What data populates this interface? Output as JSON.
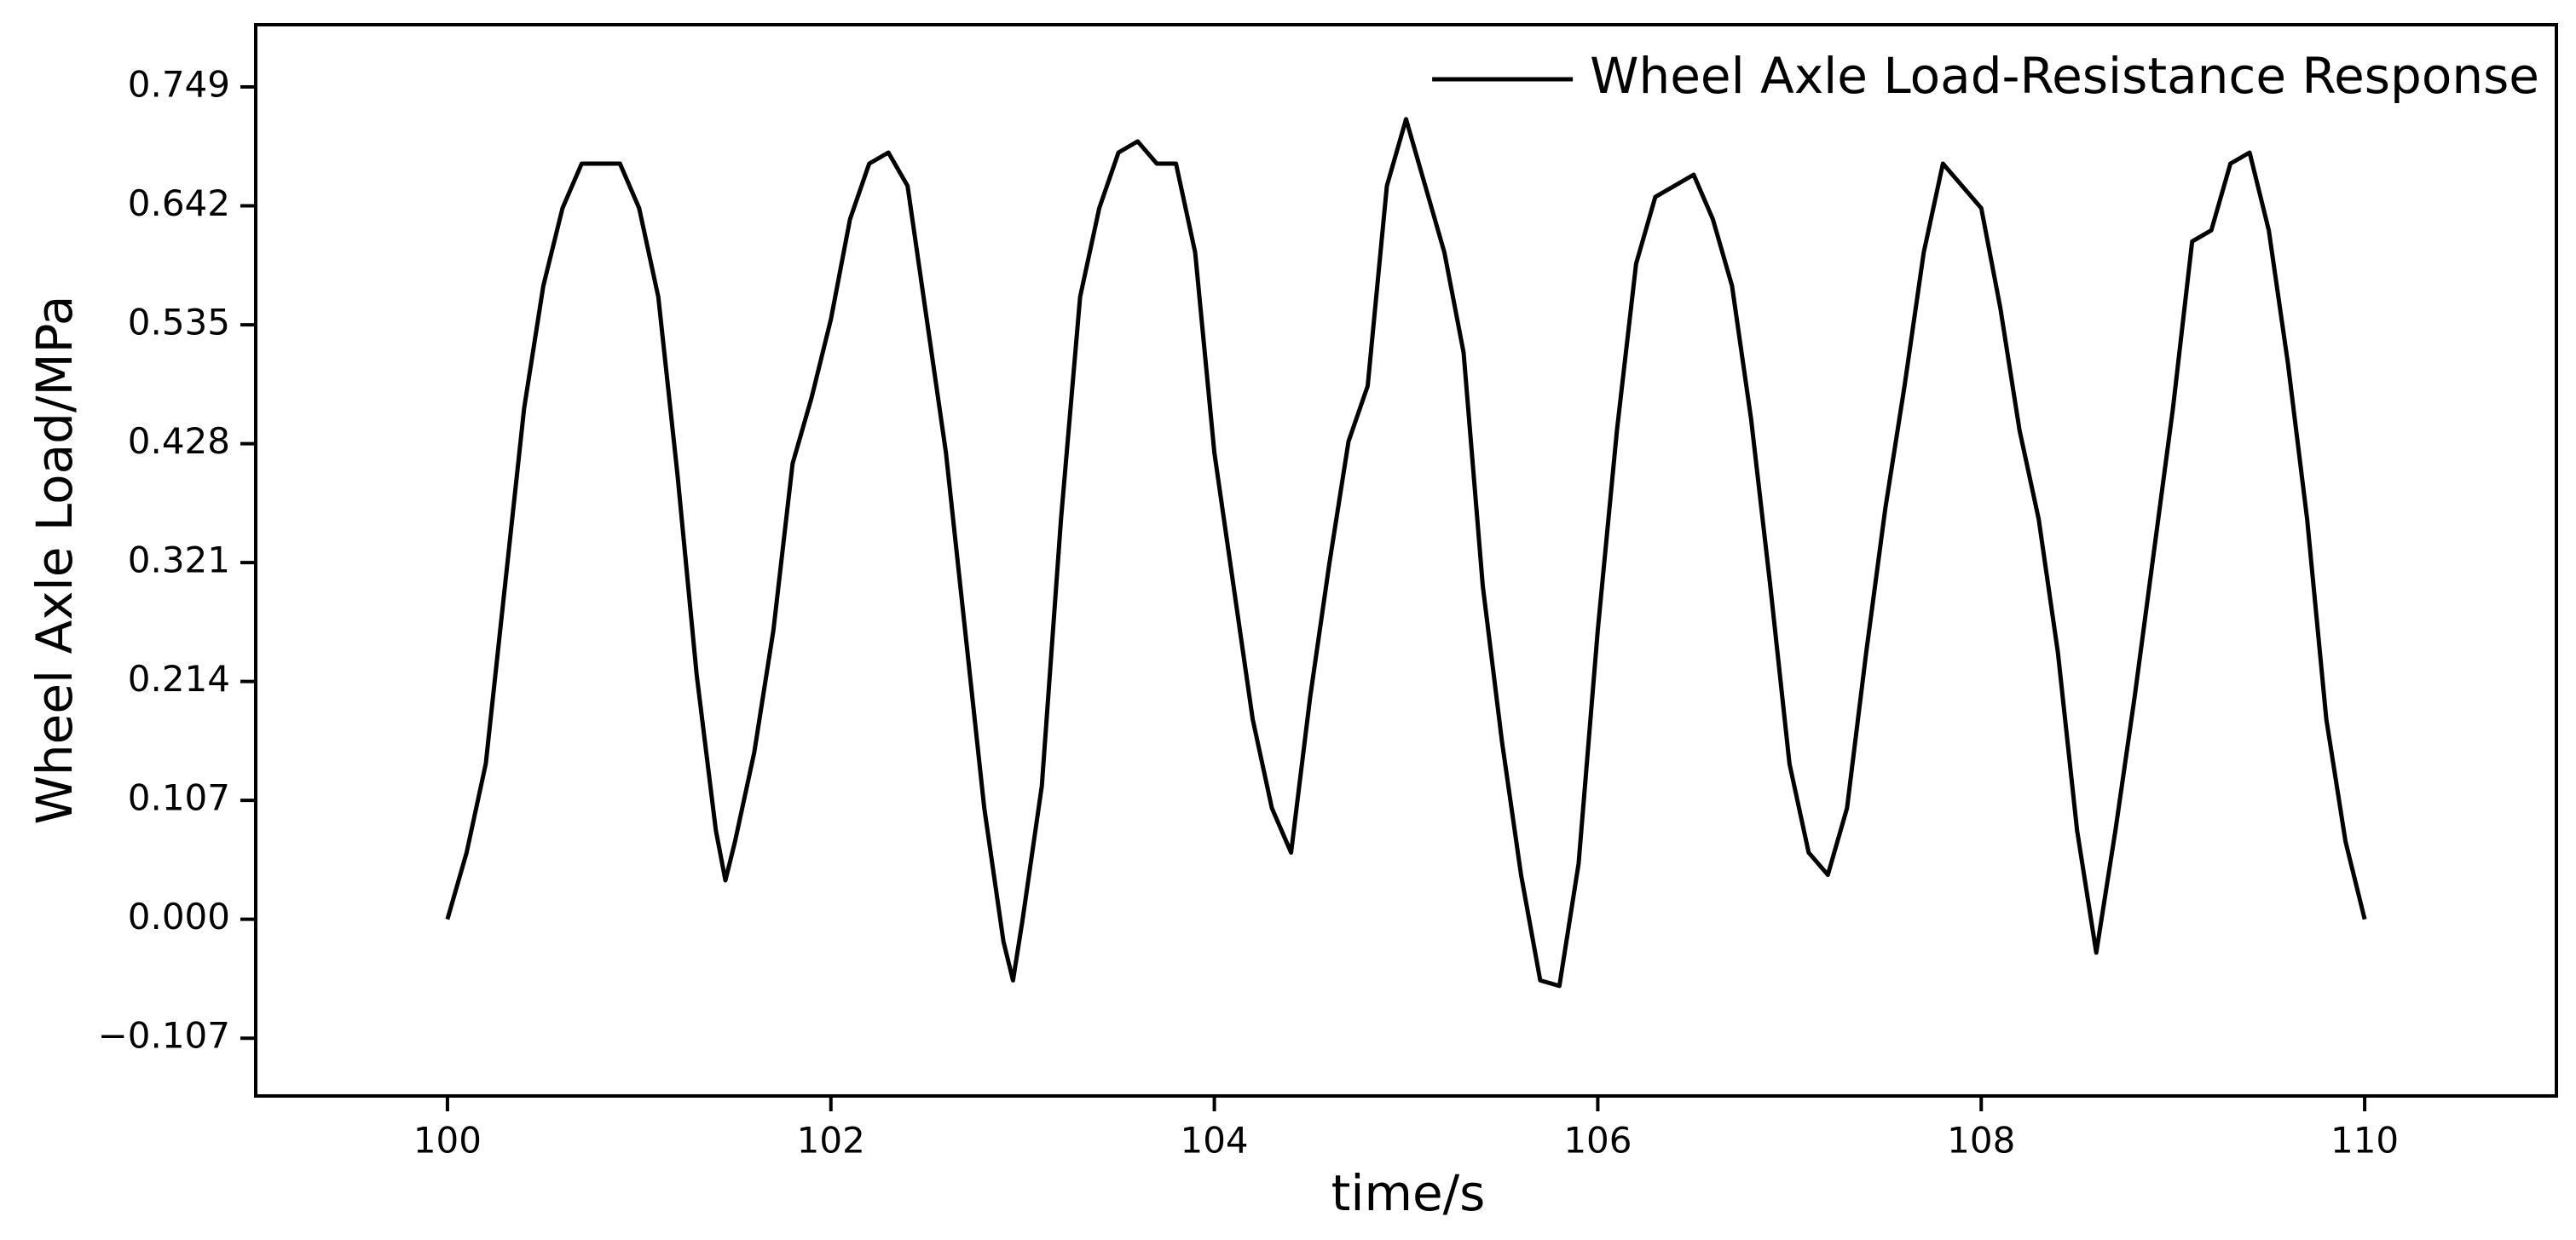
{
  "chart_data": {
    "type": "line",
    "xlabel": "time/s",
    "ylabel": "Wheel Axle Load/MPa",
    "xlim": [
      99,
      111
    ],
    "ylim": [
      -0.159,
      0.805
    ],
    "xticks": [
      100,
      102,
      104,
      106,
      108,
      110
    ],
    "yticks": [
      {
        "value": -0.107,
        "label": "−0.107"
      },
      {
        "value": 0,
        "label": "0.000"
      },
      0.107,
      0.214,
      0.321,
      0.428,
      0.535,
      0.642,
      0.749
    ],
    "legend": "upper right",
    "x": [
      100.0,
      100.1,
      100.2,
      100.3,
      100.4,
      100.5,
      100.6,
      100.7,
      100.8,
      100.9,
      101.0,
      101.1,
      101.2,
      101.3,
      101.4,
      101.45,
      101.5,
      101.6,
      101.7,
      101.8,
      101.9,
      102.0,
      102.1,
      102.2,
      102.3,
      102.4,
      102.5,
      102.6,
      102.7,
      102.8,
      102.9,
      102.95,
      103.0,
      103.1,
      103.2,
      103.3,
      103.4,
      103.5,
      103.6,
      103.7,
      103.8,
      103.9,
      104.0,
      104.1,
      104.2,
      104.3,
      104.4,
      104.5,
      104.6,
      104.7,
      104.8,
      104.9,
      105.0,
      105.1,
      105.2,
      105.3,
      105.4,
      105.5,
      105.6,
      105.7,
      105.8,
      105.9,
      106.0,
      106.1,
      106.2,
      106.3,
      106.4,
      106.5,
      106.6,
      106.7,
      106.8,
      106.9,
      107.0,
      107.1,
      107.2,
      107.3,
      107.4,
      107.5,
      107.6,
      107.7,
      107.8,
      107.9,
      108.0,
      108.1,
      108.2,
      108.3,
      108.4,
      108.5,
      108.6,
      108.7,
      108.8,
      108.9,
      109.0,
      109.1,
      109.2,
      109.3,
      109.4,
      109.5,
      109.6,
      109.7,
      109.8,
      109.9,
      110.0
    ],
    "series": [
      {
        "name": "Wheel Axle Load-Resistance Response",
        "color": "#000000",
        "values": [
          0.0,
          0.06,
          0.14,
          0.3,
          0.46,
          0.57,
          0.64,
          0.68,
          0.68,
          0.68,
          0.64,
          0.56,
          0.4,
          0.22,
          0.08,
          0.035,
          0.07,
          0.15,
          0.26,
          0.41,
          0.47,
          0.54,
          0.63,
          0.68,
          0.69,
          0.66,
          0.54,
          0.42,
          0.26,
          0.1,
          -0.02,
          -0.055,
          0.0,
          0.12,
          0.36,
          0.56,
          0.64,
          0.69,
          0.7,
          0.68,
          0.68,
          0.6,
          0.42,
          0.3,
          0.18,
          0.1,
          0.06,
          0.2,
          0.32,
          0.43,
          0.48,
          0.66,
          0.72,
          0.66,
          0.6,
          0.51,
          0.3,
          0.16,
          0.04,
          -0.055,
          -0.06,
          0.05,
          0.26,
          0.44,
          0.59,
          0.65,
          0.66,
          0.67,
          0.63,
          0.57,
          0.45,
          0.3,
          0.14,
          0.06,
          0.04,
          0.1,
          0.24,
          0.37,
          0.48,
          0.6,
          0.68,
          0.66,
          0.64,
          0.55,
          0.44,
          0.36,
          0.24,
          0.08,
          -0.03,
          0.08,
          0.2,
          0.33,
          0.46,
          0.61,
          0.62,
          0.68,
          0.69,
          0.62,
          0.5,
          0.36,
          0.18,
          0.07,
          0.0
        ]
      }
    ]
  }
}
